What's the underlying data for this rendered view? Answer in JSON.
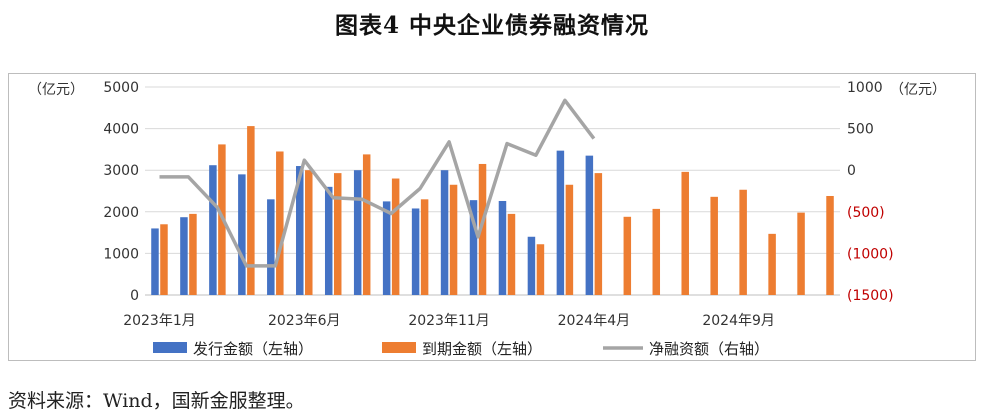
{
  "title": "图表4  中央企业债券融资情况",
  "source": "资料来源：Wind，国新金服整理。",
  "colors": {
    "issue": "#4472C4",
    "maturity": "#ED7D31",
    "net": "#A5A5A5",
    "negative_tick": "#C00000",
    "grid": "#d9d9d9"
  },
  "chart_data": {
    "type": "bar",
    "categories": [
      "2023-01",
      "2023-02",
      "2023-03",
      "2023-04",
      "2023-05",
      "2023-06",
      "2023-07",
      "2023-08",
      "2023-09",
      "2023-10",
      "2023-11",
      "2023-12",
      "2024-01",
      "2024-02",
      "2024-03",
      "2024-04",
      "2024-05",
      "2024-06",
      "2024-07",
      "2024-08",
      "2024-09",
      "2024-10",
      "2024-11",
      "2024-12"
    ],
    "x_tick_labels": [
      "2023年1月",
      "2023年6月",
      "2023年11月",
      "2024年4月",
      "2024年9月"
    ],
    "left_axis": {
      "unit": "（亿元）",
      "ylim": [
        0,
        5000
      ],
      "ticks": [
        "0",
        "1000",
        "2000",
        "3000",
        "4000",
        "5000"
      ]
    },
    "right_axis": {
      "unit": "（亿元）",
      "ylim": [
        -1500,
        1000
      ],
      "ticks": [
        "(1500)",
        "(1000)",
        "(500)",
        "0",
        "500",
        "1000"
      ]
    },
    "series": [
      {
        "name": "发行金额（左轴）",
        "type": "bar",
        "axis": "left",
        "values": [
          1600,
          1870,
          3120,
          2900,
          2300,
          3100,
          2600,
          3000,
          2250,
          2080,
          3000,
          2280,
          2260,
          1400,
          3470,
          3350,
          null,
          null,
          null,
          null,
          null,
          null,
          null,
          null
        ]
      },
      {
        "name": "到期金额（左轴）",
        "type": "bar",
        "axis": "left",
        "values": [
          1700,
          1950,
          3620,
          4060,
          3450,
          3000,
          2930,
          3380,
          2800,
          2300,
          2650,
          3150,
          1950,
          1220,
          2650,
          2930,
          1880,
          2070,
          2960,
          2360,
          2530,
          1470,
          1980,
          2380
        ]
      },
      {
        "name": "净融资额（右轴）",
        "type": "line",
        "axis": "right",
        "values": [
          -80,
          -80,
          -450,
          -1150,
          -1150,
          120,
          -330,
          -350,
          -520,
          -220,
          340,
          -800,
          320,
          180,
          840,
          380,
          null,
          null,
          null,
          null,
          null,
          null,
          null,
          null
        ]
      }
    ]
  }
}
